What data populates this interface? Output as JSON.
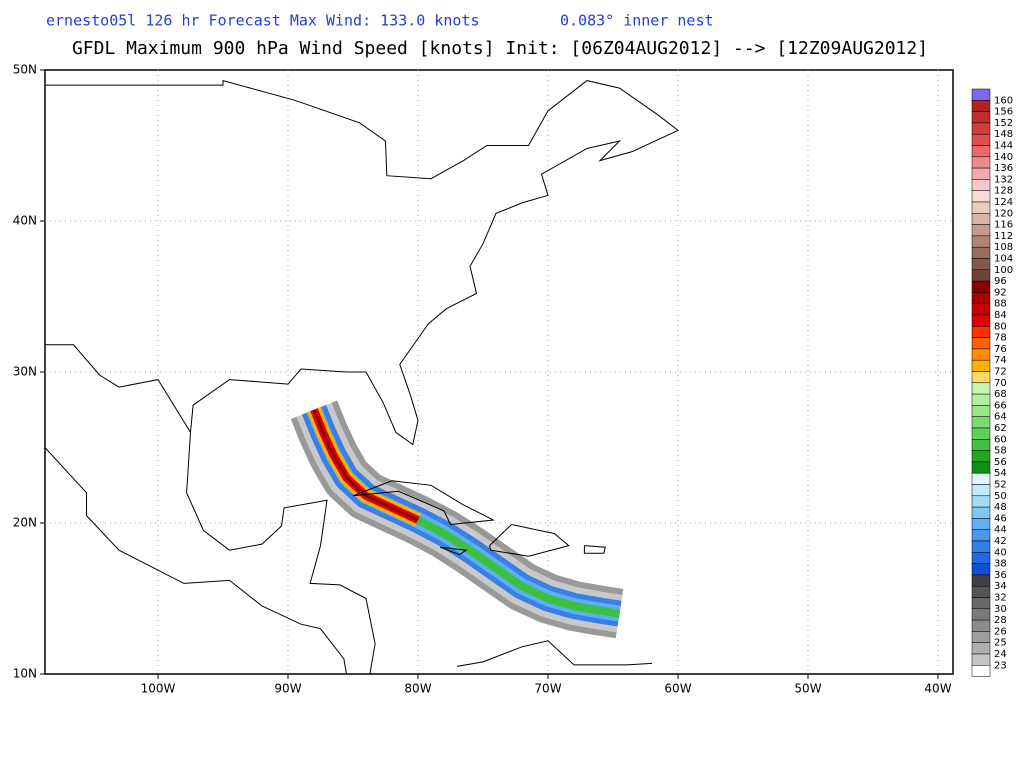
{
  "header": {
    "subtitle": "ernesto05l 126 hr Forecast Max Wind: 133.0 knots",
    "nest": "0.083° inner nest",
    "title": "GFDL Maximum 900 hPa Wind Speed [knots] Init: [06Z04AUG2012] --> [12Z09AUG2012]"
  },
  "map": {
    "lat_labels": [
      "50N",
      "40N",
      "30N",
      "20N",
      "10N"
    ],
    "lon_labels": [
      "100W",
      "90W",
      "80W",
      "70W",
      "60W",
      "50W",
      "40W"
    ]
  },
  "colorbar": {
    "labels": [
      "160",
      "156",
      "152",
      "148",
      "144",
      "140",
      "136",
      "132",
      "128",
      "124",
      "120",
      "116",
      "112",
      "108",
      "104",
      "100",
      "96",
      "92",
      "88",
      "84",
      "80",
      "78",
      "76",
      "74",
      "72",
      "70",
      "68",
      "66",
      "64",
      "62",
      "60",
      "58",
      "56",
      "54",
      "52",
      "50",
      "48",
      "46",
      "44",
      "42",
      "40",
      "38",
      "36",
      "34",
      "32",
      "30",
      "28",
      "26",
      "25",
      "24",
      "23"
    ],
    "colors": [
      "#7b68ee",
      "#b22222",
      "#c22d2d",
      "#d23c3c",
      "#de5050",
      "#e66a6a",
      "#ee8a8a",
      "#f4aaaa",
      "#f8c8c8",
      "#f4dcd8",
      "#e8ccc0",
      "#d8b4a4",
      "#c49c8c",
      "#b08474",
      "#9a6c5e",
      "#84584a",
      "#6e4438",
      "#8b0000",
      "#a80000",
      "#c40000",
      "#e00000",
      "#ff3000",
      "#ff6000",
      "#ff8c00",
      "#ffb000",
      "#ffd866",
      "#c8f5b0",
      "#b0eea0",
      "#98e688",
      "#7cdc70",
      "#60d058",
      "#40c040",
      "#20a820",
      "#109010",
      "#e0f8f8",
      "#c0ecf8",
      "#a0dcf6",
      "#80c8f4",
      "#60b0f0",
      "#4898ec",
      "#3080e8",
      "#2068e0",
      "#1050d8",
      "#404040",
      "#555555",
      "#686868",
      "#7a7a7a",
      "#8c8c8c",
      "#9e9e9e",
      "#b0b0b0",
      "#c4c4c4",
      "#ffffff"
    ]
  }
}
